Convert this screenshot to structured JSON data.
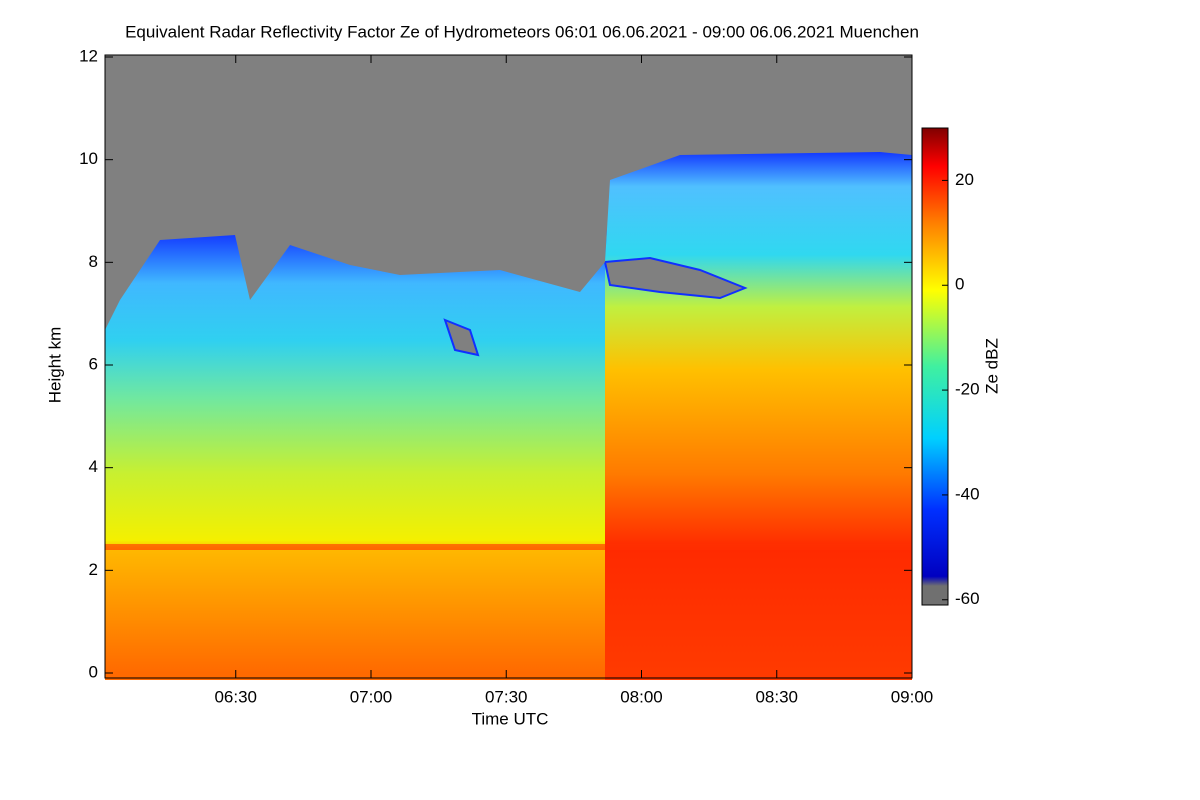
{
  "chart_data": {
    "type": "heatmap",
    "title": "Equivalent Radar Reflectivity Factor Ze of Hydrometeors   06:01 06.06.2021 - 09:00 06.06.2021 Muenchen",
    "x_label": "Time UTC",
    "y_label": "Height km",
    "colorbar_label": "Ze dBZ",
    "xlim": [
      361,
      540
    ],
    "xticks": [
      {
        "value": 390,
        "label": "06:30"
      },
      {
        "value": 420,
        "label": "07:00"
      },
      {
        "value": 450,
        "label": "07:30"
      },
      {
        "value": 480,
        "label": "08:00"
      },
      {
        "value": 510,
        "label": "08:30"
      },
      {
        "value": 540,
        "label": "09:00"
      }
    ],
    "ylim": [
      0,
      12
    ],
    "yticks": [
      0,
      2,
      4,
      6,
      8,
      10,
      12
    ],
    "clim": [
      -61,
      30
    ],
    "cticks": [
      20,
      0,
      -20,
      -40,
      -60
    ]
  }
}
